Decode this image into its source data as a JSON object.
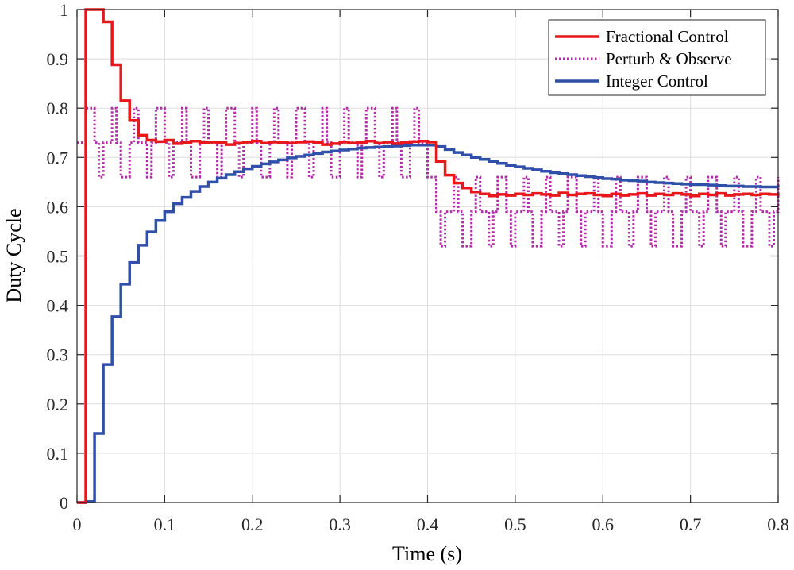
{
  "chart_data": {
    "type": "line",
    "title": "",
    "xlabel": "Time (s)",
    "ylabel": "Duty Cycle",
    "xlim": [
      0,
      0.8
    ],
    "ylim": [
      0,
      1
    ],
    "xticks": [
      0,
      0.1,
      0.2,
      0.3,
      0.4,
      0.5,
      0.6,
      0.7,
      0.8
    ],
    "yticks": [
      0,
      0.1,
      0.2,
      0.3,
      0.4,
      0.5,
      0.6,
      0.7,
      0.8,
      0.9,
      1
    ],
    "xtick_labels": [
      "0",
      "0.1",
      "0.2",
      "0.3",
      "0.4",
      "0.5",
      "0.6",
      "0.7",
      "0.8"
    ],
    "ytick_labels": [
      "0",
      "0.1",
      "0.2",
      "0.3",
      "0.4",
      "0.5",
      "0.6",
      "0.7",
      "0.8",
      "0.9",
      "1"
    ],
    "grid": true,
    "legend_position": "top-right",
    "step_size": 0.01,
    "series": [
      {
        "name": "Fractional Control",
        "color": "#e8171c",
        "style": "solid",
        "stairs": true,
        "x": [
          0,
          0.01,
          0.02,
          0.03,
          0.04,
          0.05,
          0.06,
          0.07,
          0.08,
          0.09,
          0.1,
          0.11,
          0.12,
          0.13,
          0.14,
          0.15,
          0.16,
          0.17,
          0.18,
          0.19,
          0.2,
          0.21,
          0.22,
          0.23,
          0.24,
          0.25,
          0.26,
          0.27,
          0.28,
          0.29,
          0.3,
          0.31,
          0.32,
          0.33,
          0.34,
          0.35,
          0.36,
          0.37,
          0.38,
          0.39,
          0.4,
          0.41,
          0.42,
          0.43,
          0.44,
          0.45,
          0.46,
          0.47,
          0.48,
          0.49,
          0.5,
          0.51,
          0.52,
          0.53,
          0.54,
          0.55,
          0.56,
          0.57,
          0.58,
          0.59,
          0.6,
          0.61,
          0.62,
          0.63,
          0.64,
          0.65,
          0.66,
          0.67,
          0.68,
          0.69,
          0.7,
          0.71,
          0.72,
          0.73,
          0.74,
          0.75,
          0.76,
          0.77,
          0.78,
          0.79,
          0.8
        ],
        "values": [
          0,
          1.0,
          1.0,
          0.975,
          0.888,
          0.815,
          0.775,
          0.745,
          0.735,
          0.732,
          0.735,
          0.728,
          0.73,
          0.733,
          0.73,
          0.731,
          0.73,
          0.726,
          0.729,
          0.731,
          0.733,
          0.729,
          0.731,
          0.73,
          0.729,
          0.731,
          0.732,
          0.73,
          0.726,
          0.728,
          0.731,
          0.729,
          0.73,
          0.733,
          0.729,
          0.731,
          0.728,
          0.73,
          0.732,
          0.733,
          0.731,
          0.692,
          0.664,
          0.648,
          0.638,
          0.63,
          0.626,
          0.622,
          0.625,
          0.623,
          0.626,
          0.624,
          0.627,
          0.625,
          0.623,
          0.628,
          0.624,
          0.626,
          0.627,
          0.624,
          0.622,
          0.626,
          0.623,
          0.625,
          0.627,
          0.623,
          0.626,
          0.624,
          0.627,
          0.625,
          0.622,
          0.626,
          0.624,
          0.627,
          0.623,
          0.625,
          0.626,
          0.624,
          0.626,
          0.625,
          0.627
        ]
      },
      {
        "name": "Perturb & Observe",
        "color": "#b32aa8",
        "style": "dotted",
        "stairs": true,
        "x": [
          0,
          0.01,
          0.02,
          0.025,
          0.03,
          0.04,
          0.045,
          0.05,
          0.06,
          0.065,
          0.07,
          0.08,
          0.085,
          0.09,
          0.1,
          0.105,
          0.11,
          0.12,
          0.125,
          0.13,
          0.14,
          0.145,
          0.15,
          0.16,
          0.165,
          0.17,
          0.18,
          0.185,
          0.19,
          0.2,
          0.205,
          0.21,
          0.22,
          0.225,
          0.23,
          0.24,
          0.245,
          0.25,
          0.26,
          0.265,
          0.27,
          0.28,
          0.285,
          0.29,
          0.3,
          0.305,
          0.31,
          0.32,
          0.325,
          0.33,
          0.34,
          0.345,
          0.35,
          0.36,
          0.365,
          0.37,
          0.38,
          0.385,
          0.39,
          0.4,
          0.41,
          0.415,
          0.42,
          0.43,
          0.435,
          0.44,
          0.45,
          0.455,
          0.46,
          0.47,
          0.475,
          0.48,
          0.49,
          0.495,
          0.5,
          0.51,
          0.515,
          0.52,
          0.53,
          0.535,
          0.54,
          0.55,
          0.555,
          0.56,
          0.57,
          0.575,
          0.58,
          0.59,
          0.595,
          0.6,
          0.61,
          0.615,
          0.62,
          0.63,
          0.635,
          0.64,
          0.65,
          0.655,
          0.66,
          0.67,
          0.675,
          0.68,
          0.69,
          0.695,
          0.7,
          0.71,
          0.715,
          0.72,
          0.73,
          0.735,
          0.74,
          0.75,
          0.755,
          0.76,
          0.77,
          0.775,
          0.78,
          0.79,
          0.795,
          0.8
        ],
        "values": [
          0.73,
          0.8,
          0.73,
          0.66,
          0.73,
          0.8,
          0.73,
          0.66,
          0.73,
          0.8,
          0.73,
          0.66,
          0.73,
          0.8,
          0.73,
          0.66,
          0.73,
          0.8,
          0.73,
          0.66,
          0.73,
          0.8,
          0.73,
          0.66,
          0.73,
          0.8,
          0.73,
          0.66,
          0.73,
          0.8,
          0.73,
          0.66,
          0.73,
          0.8,
          0.73,
          0.66,
          0.73,
          0.8,
          0.73,
          0.66,
          0.73,
          0.8,
          0.73,
          0.66,
          0.73,
          0.8,
          0.73,
          0.66,
          0.73,
          0.8,
          0.73,
          0.66,
          0.73,
          0.8,
          0.73,
          0.66,
          0.73,
          0.8,
          0.73,
          0.66,
          0.59,
          0.52,
          0.59,
          0.66,
          0.59,
          0.52,
          0.59,
          0.66,
          0.59,
          0.52,
          0.59,
          0.66,
          0.59,
          0.52,
          0.59,
          0.66,
          0.59,
          0.52,
          0.59,
          0.66,
          0.59,
          0.52,
          0.59,
          0.66,
          0.59,
          0.52,
          0.59,
          0.66,
          0.59,
          0.52,
          0.59,
          0.66,
          0.59,
          0.52,
          0.59,
          0.66,
          0.59,
          0.52,
          0.59,
          0.66,
          0.59,
          0.52,
          0.59,
          0.66,
          0.59,
          0.52,
          0.59,
          0.66,
          0.59,
          0.52,
          0.59,
          0.66,
          0.59,
          0.52,
          0.59,
          0.66,
          0.59,
          0.52,
          0.59,
          0.66
        ]
      },
      {
        "name": "Integer Control",
        "color": "#2f4fa8",
        "style": "solid",
        "stairs": true,
        "x": [
          0,
          0.01,
          0.02,
          0.03,
          0.04,
          0.05,
          0.06,
          0.07,
          0.08,
          0.09,
          0.1,
          0.11,
          0.12,
          0.13,
          0.14,
          0.15,
          0.16,
          0.17,
          0.18,
          0.19,
          0.2,
          0.21,
          0.22,
          0.23,
          0.24,
          0.25,
          0.26,
          0.27,
          0.28,
          0.29,
          0.3,
          0.31,
          0.32,
          0.33,
          0.34,
          0.35,
          0.36,
          0.37,
          0.38,
          0.39,
          0.4,
          0.41,
          0.42,
          0.43,
          0.44,
          0.45,
          0.46,
          0.47,
          0.48,
          0.49,
          0.5,
          0.51,
          0.52,
          0.53,
          0.54,
          0.55,
          0.56,
          0.57,
          0.58,
          0.59,
          0.6,
          0.61,
          0.62,
          0.63,
          0.64,
          0.65,
          0.66,
          0.67,
          0.68,
          0.69,
          0.7,
          0.71,
          0.72,
          0.73,
          0.74,
          0.75,
          0.76,
          0.77,
          0.78,
          0.79,
          0.8
        ],
        "values": [
          0,
          0.002,
          0.14,
          0.28,
          0.377,
          0.443,
          0.487,
          0.522,
          0.549,
          0.572,
          0.59,
          0.606,
          0.619,
          0.631,
          0.641,
          0.65,
          0.658,
          0.665,
          0.671,
          0.677,
          0.682,
          0.687,
          0.691,
          0.695,
          0.699,
          0.702,
          0.705,
          0.708,
          0.711,
          0.713,
          0.715,
          0.717,
          0.719,
          0.72,
          0.721,
          0.722,
          0.723,
          0.724,
          0.725,
          0.725,
          0.725,
          0.722,
          0.716,
          0.71,
          0.705,
          0.7,
          0.696,
          0.692,
          0.688,
          0.684,
          0.681,
          0.678,
          0.675,
          0.672,
          0.669,
          0.667,
          0.665,
          0.663,
          0.661,
          0.659,
          0.657,
          0.656,
          0.654,
          0.653,
          0.652,
          0.65,
          0.649,
          0.648,
          0.647,
          0.646,
          0.645,
          0.645,
          0.644,
          0.643,
          0.642,
          0.642,
          0.641,
          0.641,
          0.64,
          0.64,
          0.639
        ]
      }
    ]
  }
}
